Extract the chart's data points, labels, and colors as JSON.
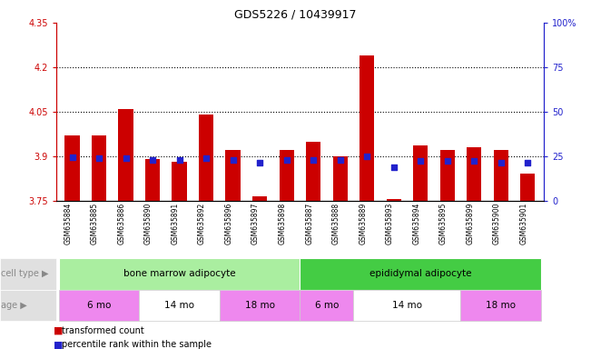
{
  "title": "GDS5226 / 10439917",
  "samples": [
    "GSM635884",
    "GSM635885",
    "GSM635886",
    "GSM635890",
    "GSM635891",
    "GSM635892",
    "GSM635896",
    "GSM635897",
    "GSM635898",
    "GSM635887",
    "GSM635888",
    "GSM635889",
    "GSM635893",
    "GSM635894",
    "GSM635895",
    "GSM635899",
    "GSM635900",
    "GSM635901"
  ],
  "bar_values": [
    3.97,
    3.97,
    4.06,
    3.89,
    3.88,
    4.04,
    3.92,
    3.765,
    3.92,
    3.95,
    3.9,
    4.24,
    3.755,
    3.935,
    3.92,
    3.93,
    3.92,
    3.84
  ],
  "blue_square_values": [
    3.895,
    3.893,
    3.893,
    3.888,
    3.888,
    3.893,
    3.888,
    3.877,
    3.888,
    3.888,
    3.888,
    3.9,
    3.862,
    3.885,
    3.885,
    3.885,
    3.877,
    3.877
  ],
  "ylim_left": [
    3.75,
    4.35
  ],
  "ylim_right": [
    0,
    100
  ],
  "yticks_left": [
    3.75,
    3.9,
    4.05,
    4.2,
    4.35
  ],
  "ytick_labels_left": [
    "3.75",
    "3.9",
    "4.05",
    "4.2",
    "4.35"
  ],
  "yticks_right": [
    0,
    25,
    50,
    75,
    100
  ],
  "ytick_labels_right": [
    "0",
    "25",
    "50",
    "75",
    "100%"
  ],
  "hlines": [
    3.9,
    4.05,
    4.2
  ],
  "bar_color": "#cc0000",
  "blue_color": "#2222cc",
  "cell_type_groups": [
    {
      "label": "bone marrow adipocyte",
      "start": 0,
      "end": 8,
      "color": "#aaeea0"
    },
    {
      "label": "epididymal adipocyte",
      "start": 9,
      "end": 17,
      "color": "#44cc44"
    }
  ],
  "age_groups": [
    {
      "label": "6 mo",
      "start": 0,
      "end": 2,
      "color": "#ee88ee"
    },
    {
      "label": "14 mo",
      "start": 3,
      "end": 5,
      "color": "#ffffff"
    },
    {
      "label": "18 mo",
      "start": 6,
      "end": 8,
      "color": "#ee88ee"
    },
    {
      "label": "6 mo",
      "start": 9,
      "end": 10,
      "color": "#ee88ee"
    },
    {
      "label": "14 mo",
      "start": 11,
      "end": 14,
      "color": "#ffffff"
    },
    {
      "label": "18 mo",
      "start": 15,
      "end": 17,
      "color": "#ee88ee"
    }
  ],
  "bar_width": 0.55,
  "left_label_color": "#cc0000",
  "right_label_color": "#2222cc",
  "legend_items": [
    {
      "label": "transformed count",
      "color": "#cc0000"
    },
    {
      "label": "percentile rank within the sample",
      "color": "#2222cc"
    }
  ],
  "bg_color": "#d8d8d8",
  "cell_type_label": "cell type",
  "age_label": "age",
  "title_fontsize": 9
}
